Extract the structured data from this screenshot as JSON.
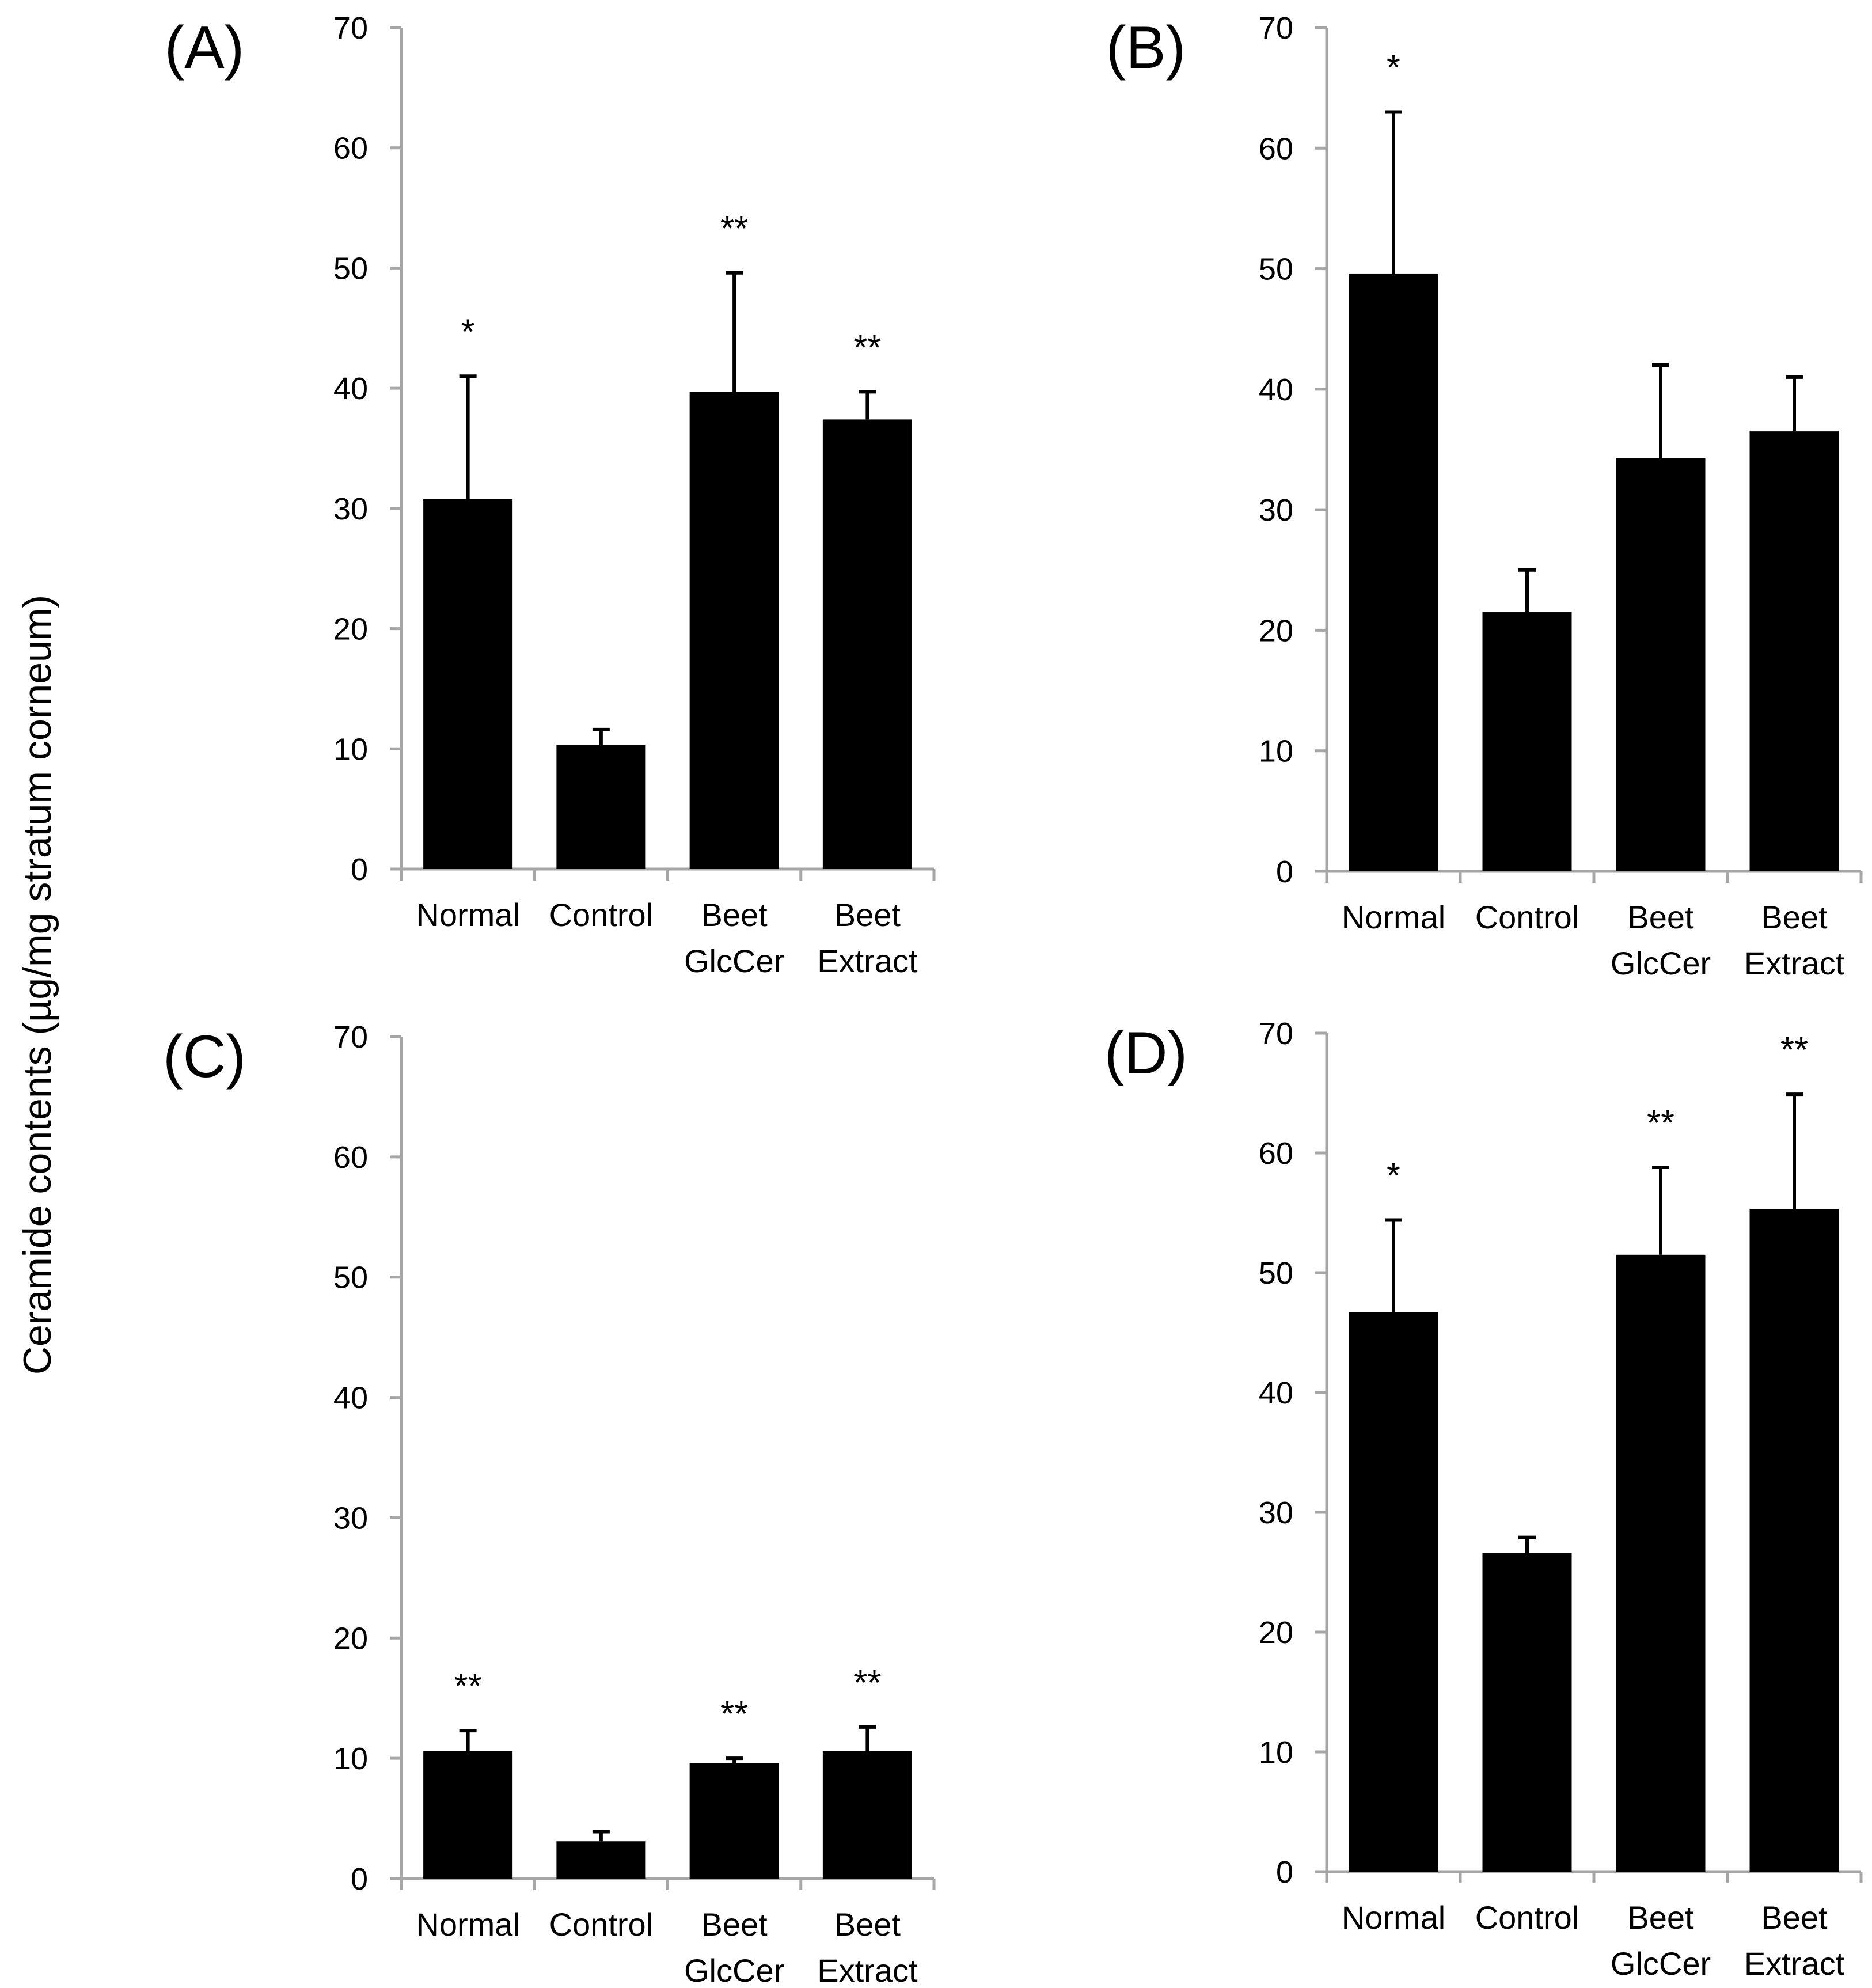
{
  "y_axis_title": "Ceramide contents (µg/mg stratum corneum)",
  "colors": {
    "bar": "#000000",
    "axis": "#a6a6a6",
    "background": "#ffffff"
  },
  "chart_data": [
    {
      "panel": "(A)",
      "type": "bar",
      "categories": [
        [
          "Normal"
        ],
        [
          "Control"
        ],
        [
          "Beet",
          "GlcCer"
        ],
        [
          "Beet",
          "Extract"
        ]
      ],
      "values": [
        30.8,
        10.3,
        39.7,
        37.4
      ],
      "errors": [
        10.2,
        1.3,
        9.9,
        2.3
      ],
      "significance": [
        "*",
        "",
        "**",
        "**"
      ],
      "ylim": [
        0,
        70
      ],
      "yticks": [
        0,
        10,
        20,
        30,
        40,
        50,
        60,
        70
      ]
    },
    {
      "panel": "(B)",
      "type": "bar",
      "categories": [
        [
          "Normal"
        ],
        [
          "Control"
        ],
        [
          "Beet",
          "GlcCer"
        ],
        [
          "Beet",
          "Extract"
        ]
      ],
      "values": [
        49.6,
        21.5,
        34.3,
        36.5
      ],
      "errors": [
        13.4,
        3.5,
        7.7,
        4.5
      ],
      "significance": [
        "*",
        "",
        "",
        ""
      ],
      "ylim": [
        0,
        70
      ],
      "yticks": [
        0,
        10,
        20,
        30,
        40,
        50,
        60,
        70
      ]
    },
    {
      "panel": "(C)",
      "type": "bar",
      "categories": [
        [
          "Normal"
        ],
        [
          "Control"
        ],
        [
          "Beet",
          "GlcCer"
        ],
        [
          "Beet",
          "Extract"
        ]
      ],
      "values": [
        10.6,
        3.1,
        9.6,
        10.6
      ],
      "errors": [
        1.7,
        0.8,
        0.4,
        2.0
      ],
      "significance": [
        "**",
        "",
        "**",
        "**"
      ],
      "ylim": [
        0,
        70
      ],
      "yticks": [
        0,
        10,
        20,
        30,
        40,
        50,
        60,
        70
      ]
    },
    {
      "panel": "(D)",
      "type": "bar",
      "categories": [
        [
          "Normal"
        ],
        [
          "Control"
        ],
        [
          "Beet",
          "GlcCer"
        ],
        [
          "Beet",
          "Extract"
        ]
      ],
      "values": [
        46.7,
        26.6,
        51.5,
        55.3
      ],
      "errors": [
        7.7,
        1.3,
        7.3,
        9.6
      ],
      "significance": [
        "*",
        "",
        "**",
        "**"
      ],
      "ylim": [
        0,
        70
      ],
      "yticks": [
        0,
        10,
        20,
        30,
        40,
        50,
        60,
        70
      ]
    }
  ]
}
